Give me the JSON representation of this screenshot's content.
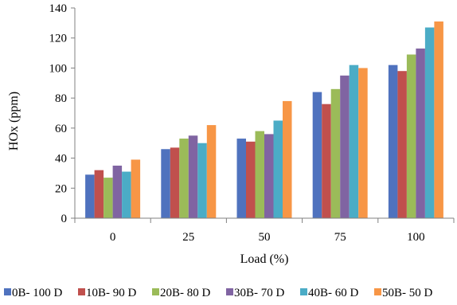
{
  "chart_data": {
    "type": "bar",
    "title": "",
    "xlabel": "Load (%)",
    "ylabel": "HOx (ppm)",
    "categories": [
      "0",
      "25",
      "50",
      "75",
      "100"
    ],
    "ylim": [
      0,
      140
    ],
    "yticks": [
      0,
      20,
      40,
      60,
      80,
      100,
      120,
      140
    ],
    "grid": false,
    "legend_position": "bottom",
    "series": [
      {
        "name": "0B- 100 D",
        "color": "#4f72be",
        "values": [
          29,
          46,
          53,
          84,
          102
        ]
      },
      {
        "name": "10B- 90 D",
        "color": "#c0504d",
        "values": [
          32,
          47,
          51,
          76,
          98
        ]
      },
      {
        "name": "20B- 80 D",
        "color": "#9bbb59",
        "values": [
          27,
          53,
          58,
          86,
          109
        ]
      },
      {
        "name": "30B- 70 D",
        "color": "#8064a2",
        "values": [
          35,
          55,
          56,
          95,
          113
        ]
      },
      {
        "name": "40B- 60 D",
        "color": "#4bacc6",
        "values": [
          31,
          50,
          65,
          102,
          127
        ]
      },
      {
        "name": "50B- 50 D",
        "color": "#f79646",
        "values": [
          39,
          62,
          78,
          100,
          131
        ]
      }
    ]
  }
}
